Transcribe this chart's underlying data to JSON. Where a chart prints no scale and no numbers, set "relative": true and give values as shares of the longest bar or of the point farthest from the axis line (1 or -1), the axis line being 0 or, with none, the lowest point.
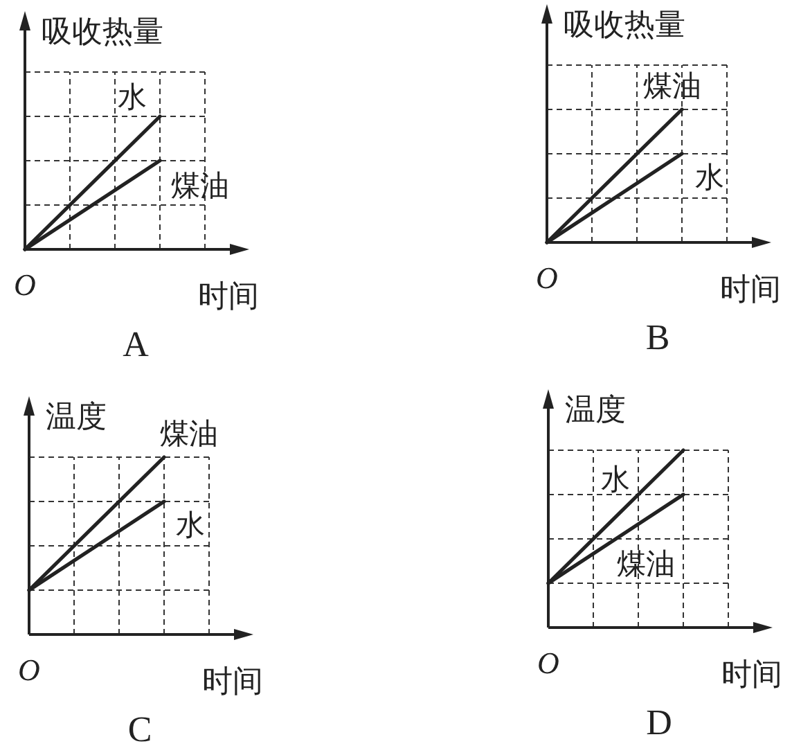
{
  "chart_data": [
    {
      "type": "line",
      "title": "A",
      "ylabel": "吸收热量",
      "xlabel": "时间",
      "annotations": [
        "O"
      ],
      "relative": true,
      "grid": true,
      "marker": "none",
      "line_style": "solid",
      "categories": [
        null,
        null
      ],
      "series": [
        {
          "name": "水",
          "color": "#222222",
          "values": [
            0,
            1
          ]
        },
        {
          "name": "煤油",
          "color": "#222222",
          "values": [
            0,
            0.667
          ]
        }
      ]
    },
    {
      "type": "line",
      "title": "B",
      "ylabel": "吸收热量",
      "xlabel": "时间",
      "annotations": [
        "O"
      ],
      "relative": true,
      "grid": true,
      "marker": "none",
      "line_style": "solid",
      "categories": [
        null,
        null
      ],
      "series": [
        {
          "name": "煤油",
          "color": "#222222",
          "values": [
            0,
            1
          ]
        },
        {
          "name": "水",
          "color": "#222222",
          "values": [
            0,
            0.667
          ]
        }
      ]
    },
    {
      "type": "line",
      "title": "C",
      "ylabel": "温度",
      "xlabel": "时间",
      "annotations": [
        "O"
      ],
      "relative": true,
      "grid": true,
      "marker": "none",
      "line_style": "solid",
      "categories": [
        null,
        null
      ],
      "series": [
        {
          "name": "煤油",
          "color": "#222222",
          "values": [
            0.25,
            1
          ]
        },
        {
          "name": "水",
          "color": "#222222",
          "values": [
            0.25,
            0.75
          ]
        }
      ]
    },
    {
      "type": "line",
      "title": "D",
      "ylabel": "温度",
      "xlabel": "时间",
      "annotations": [
        "O"
      ],
      "relative": true,
      "grid": true,
      "marker": "none",
      "line_style": "solid",
      "categories": [
        null,
        null
      ],
      "series": [
        {
          "name": "水",
          "color": "#222222",
          "values": [
            0.25,
            1
          ]
        },
        {
          "name": "煤油",
          "color": "#222222",
          "values": [
            0.25,
            0.75
          ]
        }
      ]
    }
  ]
}
